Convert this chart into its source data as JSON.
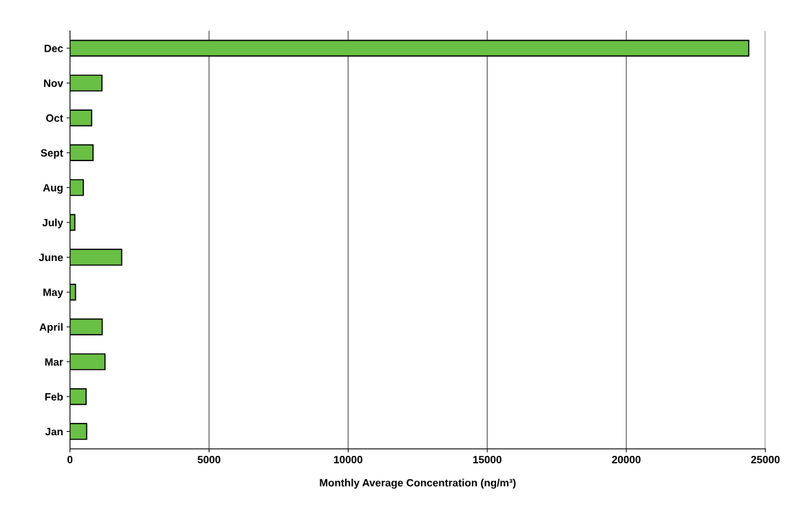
{
  "chart_data": {
    "type": "bar",
    "orientation": "horizontal",
    "categories": [
      "Dec",
      "Nov",
      "Oct",
      "Sept",
      "Aug",
      "July",
      "June",
      "May",
      "April",
      "Mar",
      "Feb",
      "Jan"
    ],
    "values": [
      24400,
      1150,
      780,
      830,
      480,
      175,
      1860,
      200,
      1160,
      1260,
      580,
      600
    ],
    "color": "#6abf45",
    "xlabel": "Monthly Average Concentration (ng/m³)",
    "xlim": [
      0,
      25000
    ],
    "xticks": [
      0,
      5000,
      10000,
      15000,
      20000,
      25000
    ],
    "grid": "x",
    "legend": false
  }
}
